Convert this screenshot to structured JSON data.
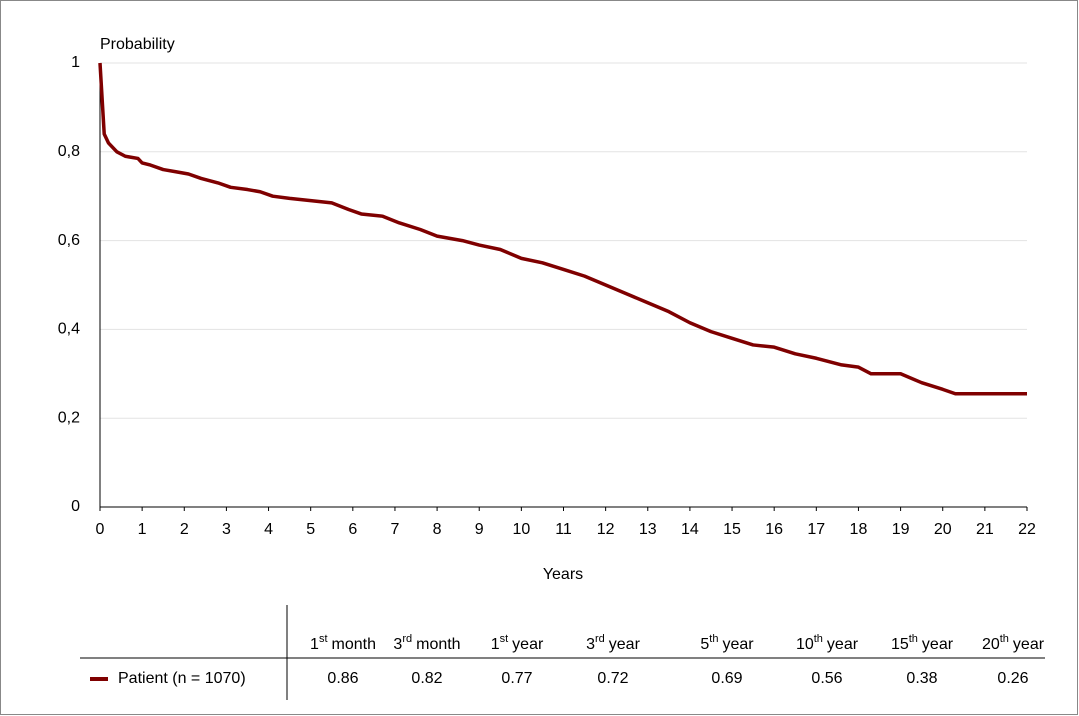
{
  "chart_data": {
    "type": "line",
    "y_label": "Probability",
    "x_label": "Years",
    "x": [
      0,
      0.1,
      0.2,
      0.4,
      0.6,
      0.9,
      1.0,
      1.2,
      1.5,
      1.8,
      2.1,
      2.4,
      2.8,
      3.1,
      3.5,
      3.8,
      4.1,
      4.5,
      5.0,
      5.5,
      5.9,
      6.2,
      6.7,
      7.1,
      7.6,
      8.0,
      8.6,
      9.0,
      9.5,
      10.0,
      10.5,
      11.0,
      11.5,
      12.0,
      12.5,
      13.0,
      13.5,
      14.0,
      14.5,
      15.0,
      15.5,
      16.0,
      16.5,
      17.0,
      17.6,
      18.0,
      18.3,
      19.0,
      19.5,
      20.0,
      20.3,
      22.0
    ],
    "series": [
      {
        "name": "Patient (n = 1070)",
        "color": "#7f0000",
        "values": [
          1.0,
          0.84,
          0.82,
          0.8,
          0.79,
          0.785,
          0.775,
          0.77,
          0.76,
          0.755,
          0.75,
          0.74,
          0.73,
          0.72,
          0.715,
          0.71,
          0.7,
          0.695,
          0.69,
          0.685,
          0.67,
          0.66,
          0.655,
          0.64,
          0.625,
          0.61,
          0.6,
          0.59,
          0.58,
          0.56,
          0.55,
          0.535,
          0.52,
          0.5,
          0.48,
          0.46,
          0.44,
          0.415,
          0.395,
          0.38,
          0.365,
          0.36,
          0.345,
          0.335,
          0.32,
          0.315,
          0.3,
          0.3,
          0.28,
          0.265,
          0.255,
          0.255
        ]
      }
    ],
    "xlim": [
      0,
      22
    ],
    "xticks": [
      0,
      1,
      2,
      3,
      4,
      5,
      6,
      7,
      8,
      9,
      10,
      11,
      12,
      13,
      14,
      15,
      16,
      17,
      18,
      19,
      20,
      21,
      22
    ],
    "ylim": [
      0,
      1
    ],
    "yticks": [
      0,
      {
        "value": 0.2,
        "label": "0,2"
      },
      {
        "value": 0.4,
        "label": "0,4"
      },
      {
        "value": 0.6,
        "label": "0,6"
      },
      {
        "value": 0.8,
        "label": "0,8"
      },
      1
    ],
    "grid": true
  },
  "table": {
    "columns": [
      {
        "n": "1",
        "sup": "st",
        "unit": "month"
      },
      {
        "n": "3",
        "sup": "rd",
        "unit": "month"
      },
      {
        "n": "1",
        "sup": "st",
        "unit": "year"
      },
      {
        "n": "3",
        "sup": "rd",
        "unit": "year"
      },
      {
        "n": "5",
        "sup": "th",
        "unit": "year"
      },
      {
        "n": "10",
        "sup": "th",
        "unit": "year"
      },
      {
        "n": "15",
        "sup": "th",
        "unit": "year"
      },
      {
        "n": "20",
        "sup": "th",
        "unit": "year"
      }
    ],
    "rows": [
      [
        0.86,
        0.82,
        0.77,
        0.72,
        0.69,
        0.56,
        0.38,
        0.26
      ]
    ]
  }
}
